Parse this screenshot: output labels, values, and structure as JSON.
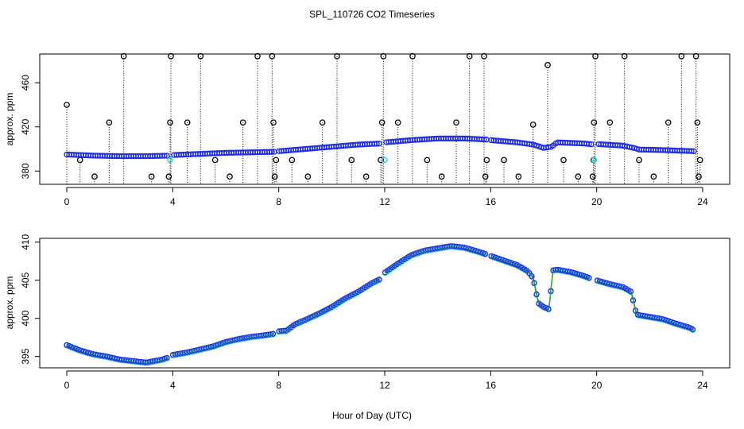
{
  "title": "SPL_110726  CO2 Timeseries",
  "xlabel": "Hour of Day (UTC)",
  "chart_data": [
    {
      "type": "scatter",
      "panel": "top",
      "ylabel": "approx. ppm",
      "xlim": [
        0,
        24
      ],
      "ylim": [
        368,
        486
      ],
      "xticks": [
        0,
        4,
        8,
        12,
        16,
        20,
        24
      ],
      "yticks": [
        380,
        420,
        460
      ],
      "dropline_base": 340,
      "baseline_series": [
        {
          "x": 0,
          "y": 395
        },
        {
          "x": 1,
          "y": 394
        },
        {
          "x": 2,
          "y": 393.5
        },
        {
          "x": 3,
          "y": 393.5
        },
        {
          "x": 3.9,
          "y": 394
        },
        {
          "x": 4,
          "y": 394.5
        },
        {
          "x": 5,
          "y": 395.5
        },
        {
          "x": 6,
          "y": 396.5
        },
        {
          "x": 7,
          "y": 397
        },
        {
          "x": 7.9,
          "y": 397.5
        },
        {
          "x": 8,
          "y": 398
        },
        {
          "x": 9,
          "y": 400
        },
        {
          "x": 10,
          "y": 402
        },
        {
          "x": 11,
          "y": 404
        },
        {
          "x": 11.9,
          "y": 405
        },
        {
          "x": 12,
          "y": 406
        },
        {
          "x": 13,
          "y": 408
        },
        {
          "x": 14,
          "y": 409.5
        },
        {
          "x": 15,
          "y": 409.5
        },
        {
          "x": 15.9,
          "y": 408.5
        },
        {
          "x": 16,
          "y": 408
        },
        {
          "x": 17,
          "y": 406
        },
        {
          "x": 17.6,
          "y": 404
        },
        {
          "x": 18,
          "y": 401
        },
        {
          "x": 18.3,
          "y": 402
        },
        {
          "x": 18.5,
          "y": 406
        },
        {
          "x": 19.5,
          "y": 405
        },
        {
          "x": 19.9,
          "y": 404
        },
        {
          "x": 20,
          "y": 404.5
        },
        {
          "x": 21,
          "y": 403
        },
        {
          "x": 21.4,
          "y": 401
        },
        {
          "x": 21.6,
          "y": 399.5
        },
        {
          "x": 22.5,
          "y": 399
        },
        {
          "x": 23.7,
          "y": 398
        }
      ],
      "spikes": [
        {
          "x": 0,
          "y": 440
        },
        {
          "x": 0.5,
          "y": 390
        },
        {
          "x": 1.05,
          "y": 375
        },
        {
          "x": 1.6,
          "y": 424
        },
        {
          "x": 2.15,
          "y": 484
        },
        {
          "x": 3.2,
          "y": 375
        },
        {
          "x": 3.85,
          "y": 375
        },
        {
          "x": 3.9,
          "y": 424
        },
        {
          "x": 3.93,
          "y": 484
        },
        {
          "x": 4.55,
          "y": 424
        },
        {
          "x": 5.05,
          "y": 484
        },
        {
          "x": 5.6,
          "y": 390
        },
        {
          "x": 6.15,
          "y": 375
        },
        {
          "x": 6.65,
          "y": 424
        },
        {
          "x": 7.2,
          "y": 484
        },
        {
          "x": 7.75,
          "y": 484
        },
        {
          "x": 7.8,
          "y": 424
        },
        {
          "x": 7.85,
          "y": 375
        },
        {
          "x": 7.9,
          "y": 390
        },
        {
          "x": 8.5,
          "y": 390
        },
        {
          "x": 9.1,
          "y": 375
        },
        {
          "x": 9.65,
          "y": 424
        },
        {
          "x": 10.2,
          "y": 484
        },
        {
          "x": 10.75,
          "y": 390
        },
        {
          "x": 11.3,
          "y": 375
        },
        {
          "x": 11.85,
          "y": 390
        },
        {
          "x": 11.9,
          "y": 424
        },
        {
          "x": 11.95,
          "y": 484
        },
        {
          "x": 12.5,
          "y": 424
        },
        {
          "x": 13.05,
          "y": 484
        },
        {
          "x": 13.6,
          "y": 390
        },
        {
          "x": 14.15,
          "y": 375
        },
        {
          "x": 14.7,
          "y": 424
        },
        {
          "x": 15.2,
          "y": 484
        },
        {
          "x": 15.75,
          "y": 484
        },
        {
          "x": 15.8,
          "y": 375
        },
        {
          "x": 15.85,
          "y": 390
        },
        {
          "x": 16.5,
          "y": 390
        },
        {
          "x": 17.05,
          "y": 375
        },
        {
          "x": 17.6,
          "y": 422
        },
        {
          "x": 18.15,
          "y": 476
        },
        {
          "x": 18.75,
          "y": 390
        },
        {
          "x": 19.3,
          "y": 375
        },
        {
          "x": 19.85,
          "y": 375
        },
        {
          "x": 19.88,
          "y": 390
        },
        {
          "x": 19.9,
          "y": 424
        },
        {
          "x": 19.95,
          "y": 484
        },
        {
          "x": 20.5,
          "y": 424
        },
        {
          "x": 21.05,
          "y": 484
        },
        {
          "x": 21.6,
          "y": 390
        },
        {
          "x": 22.15,
          "y": 375
        },
        {
          "x": 22.7,
          "y": 424
        },
        {
          "x": 23.2,
          "y": 484
        },
        {
          "x": 23.75,
          "y": 484
        },
        {
          "x": 23.8,
          "y": 424
        },
        {
          "x": 23.85,
          "y": 375
        },
        {
          "x": 23.9,
          "y": 390
        }
      ],
      "cyan_points": [
        {
          "x": 3.9,
          "y": 390
        },
        {
          "x": 12,
          "y": 390
        },
        {
          "x": 19.9,
          "y": 390
        }
      ]
    },
    {
      "type": "scatter",
      "panel": "bottom",
      "ylabel": "approx. ppm",
      "xlim": [
        0,
        24
      ],
      "ylim": [
        393.5,
        410.5
      ],
      "xticks": [
        0,
        4,
        8,
        12,
        16,
        20,
        24
      ],
      "yticks": [
        395,
        400,
        405,
        410
      ],
      "series": [
        {
          "x": 0,
          "y": 396.5
        },
        {
          "x": 0.5,
          "y": 395.8
        },
        {
          "x": 1,
          "y": 395.3
        },
        {
          "x": 1.5,
          "y": 395
        },
        {
          "x": 2,
          "y": 394.6
        },
        {
          "x": 2.5,
          "y": 394.4
        },
        {
          "x": 3,
          "y": 394.2
        },
        {
          "x": 3.6,
          "y": 394.6
        },
        {
          "x": 3.85,
          "y": 394.9
        },
        {
          "x": 4,
          "y": 395.2
        },
        {
          "x": 4.5,
          "y": 395.5
        },
        {
          "x": 5,
          "y": 395.9
        },
        {
          "x": 5.5,
          "y": 396.3
        },
        {
          "x": 6,
          "y": 396.9
        },
        {
          "x": 6.5,
          "y": 397.3
        },
        {
          "x": 7,
          "y": 397.6
        },
        {
          "x": 7.5,
          "y": 397.8
        },
        {
          "x": 7.85,
          "y": 398
        },
        {
          "x": 8,
          "y": 398.3
        },
        {
          "x": 8.3,
          "y": 398.4
        },
        {
          "x": 8.6,
          "y": 399.2
        },
        {
          "x": 9,
          "y": 399.8
        },
        {
          "x": 9.5,
          "y": 400.6
        },
        {
          "x": 10,
          "y": 401.5
        },
        {
          "x": 10.5,
          "y": 402.6
        },
        {
          "x": 11,
          "y": 403.5
        },
        {
          "x": 11.5,
          "y": 404.6
        },
        {
          "x": 11.85,
          "y": 405.2
        },
        {
          "x": 12,
          "y": 406
        },
        {
          "x": 12.5,
          "y": 407.2
        },
        {
          "x": 13,
          "y": 408.3
        },
        {
          "x": 13.5,
          "y": 408.9
        },
        {
          "x": 14,
          "y": 409.2
        },
        {
          "x": 14.5,
          "y": 409.5
        },
        {
          "x": 15,
          "y": 409.3
        },
        {
          "x": 15.5,
          "y": 408.8
        },
        {
          "x": 15.85,
          "y": 408.4
        },
        {
          "x": 16,
          "y": 408.2
        },
        {
          "x": 16.5,
          "y": 407.6
        },
        {
          "x": 17,
          "y": 407
        },
        {
          "x": 17.4,
          "y": 406.2
        },
        {
          "x": 17.6,
          "y": 405.3
        },
        {
          "x": 17.8,
          "y": 402
        },
        {
          "x": 18,
          "y": 401.5
        },
        {
          "x": 18.2,
          "y": 401.2
        },
        {
          "x": 18.35,
          "y": 406.3
        },
        {
          "x": 18.5,
          "y": 406.4
        },
        {
          "x": 19,
          "y": 406.1
        },
        {
          "x": 19.5,
          "y": 405.6
        },
        {
          "x": 19.8,
          "y": 405.2
        },
        {
          "x": 20,
          "y": 405
        },
        {
          "x": 20.5,
          "y": 404.5
        },
        {
          "x": 21,
          "y": 404.1
        },
        {
          "x": 21.3,
          "y": 403.5
        },
        {
          "x": 21.5,
          "y": 400.5
        },
        {
          "x": 22,
          "y": 400.2
        },
        {
          "x": 22.5,
          "y": 399.9
        },
        {
          "x": 23,
          "y": 399.3
        },
        {
          "x": 23.5,
          "y": 398.8
        },
        {
          "x": 23.7,
          "y": 398.4
        }
      ]
    }
  ]
}
